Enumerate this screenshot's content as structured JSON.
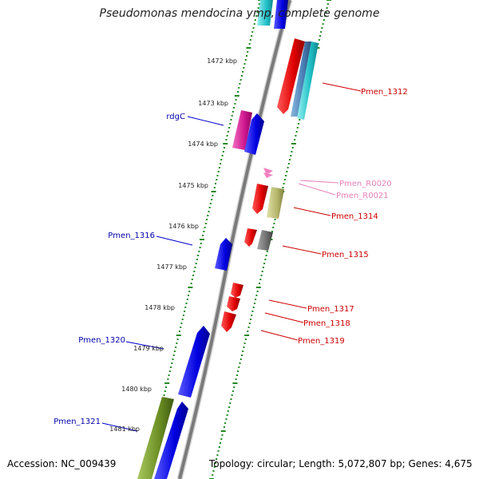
{
  "title": "Pseudomonas mendocina ymp, complete genome",
  "accession": "Accession: NC_009439",
  "topology": "Topology: circular; Length: 5,072,807 bp; Genes: 4,675",
  "kbp_labels": [
    "1472 kbp",
    "1473 kbp",
    "1474 kbp",
    "1475 kbp",
    "1476 kbp",
    "1477 kbp",
    "1478 kbp",
    "1479 kbp",
    "1480 kbp",
    "1481 kbp"
  ],
  "kbp_values": [
    1472,
    1473,
    1474,
    1475,
    1476,
    1477,
    1478,
    1479,
    1480,
    1481
  ],
  "gene_labels": {
    "rdgC": "rdgC",
    "pmen_1312": "Pmen_1312",
    "pmen_r0020": "Pmen_R0020",
    "pmen_r0021": "Pmen_R0021",
    "pmen_1314": "Pmen_1314",
    "pmen_1316": "Pmen_1316",
    "pmen_1315": "Pmen_1315",
    "pmen_1317": "Pmen_1317",
    "pmen_1318": "Pmen_1318",
    "pmen_1320": "Pmen_1320",
    "pmen_1319": "Pmen_1319",
    "pmen_1321": "Pmen_1321"
  },
  "colors": {
    "backbone": "#8a8a8a",
    "tick_green": "#1f8a1f",
    "red": "#ff0000",
    "blue": "#0000ff",
    "cyan": "#22cccc",
    "steel": "#4a7fb5",
    "magenta": "#e0209a",
    "pink": "#f080c0",
    "khaki": "#b5b56a",
    "gray": "#6e6e6e",
    "olive": "#6b8e23",
    "label_blue": "#0000aa",
    "label_red": "#cc0000",
    "label_pink": "#e880b8"
  }
}
